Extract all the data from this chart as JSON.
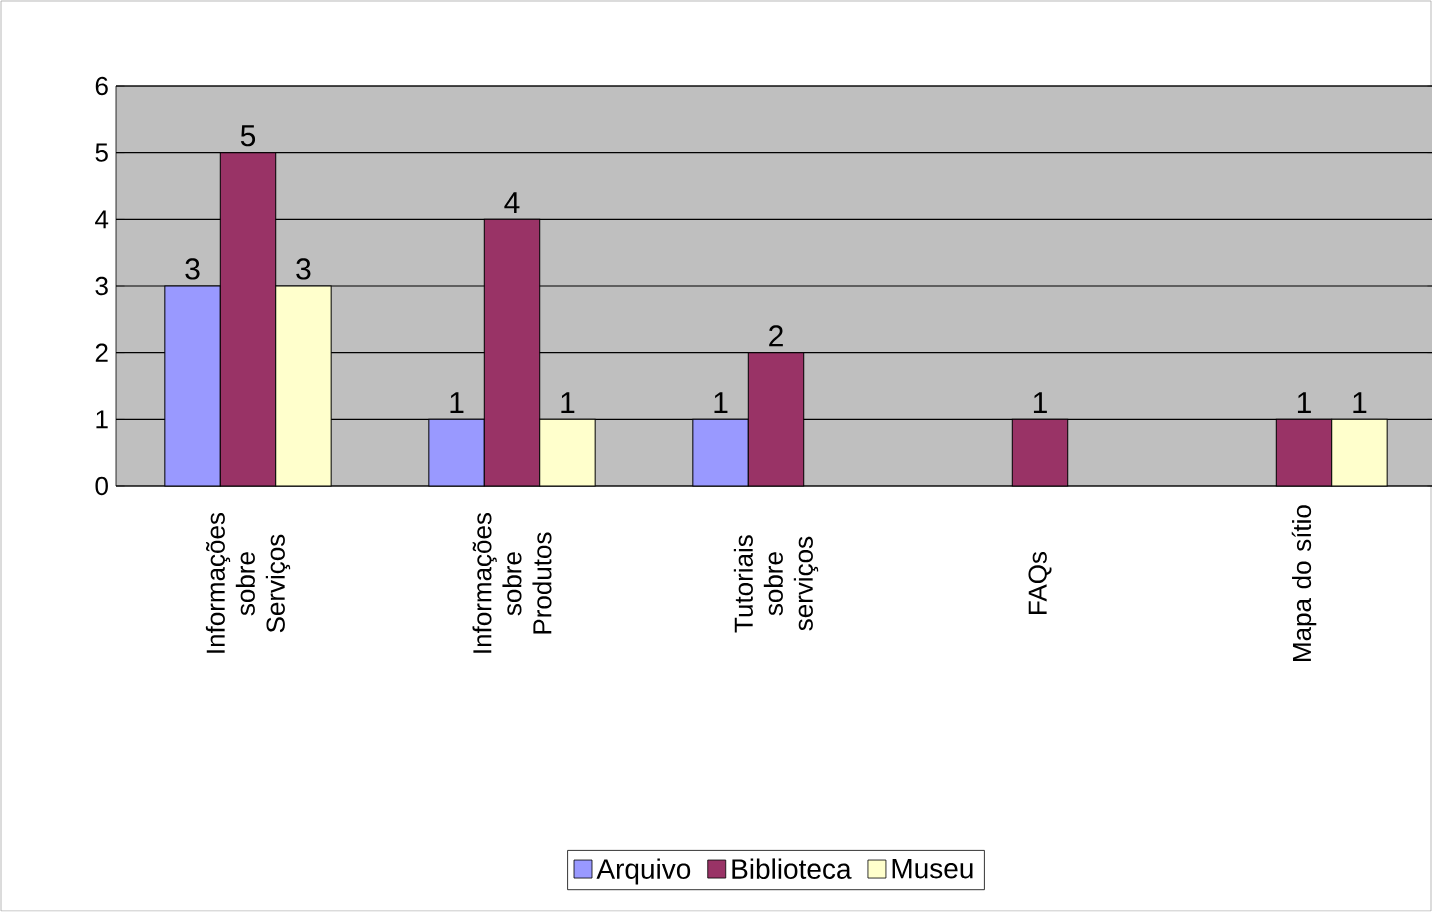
{
  "chart_data": {
    "type": "bar",
    "categories": [
      "Informações sobre Serviços",
      "Informações sobre Produtos",
      "Tutoriais sobre serviços",
      "FAQs",
      "Mapa do sítio"
    ],
    "series": [
      {
        "name": "Arquivo",
        "color": "#9999ff",
        "values": [
          3,
          1,
          1,
          null,
          null
        ]
      },
      {
        "name": "Biblioteca",
        "color": "#993366",
        "values": [
          5,
          4,
          2,
          1,
          1
        ]
      },
      {
        "name": "Museu",
        "color": "#ffffcc",
        "values": [
          3,
          1,
          null,
          null,
          1
        ]
      }
    ],
    "ylim": [
      0,
      6
    ],
    "yticks": [
      0,
      1,
      2,
      3,
      4,
      5,
      6
    ],
    "grid": "y",
    "legend": "bottom",
    "data_labels": true
  }
}
